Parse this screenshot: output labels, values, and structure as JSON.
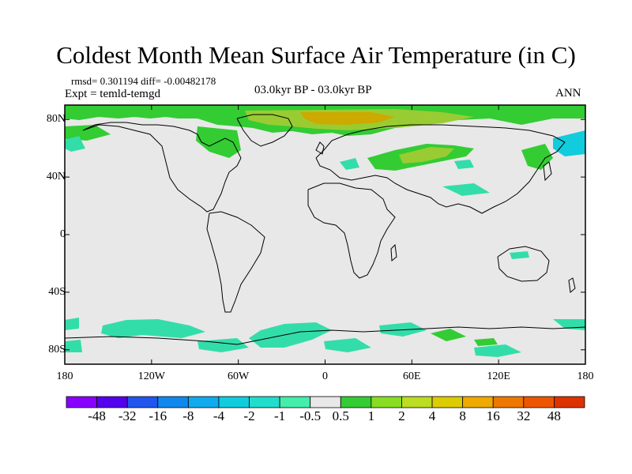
{
  "title": "Coldest Month Mean Surface Air Temperature (in C)",
  "stats_line": "rmsd= 0.301194 diff= -0.00482178",
  "expt_line": "Expt = temld-temgd",
  "period_label": "03.0kyr BP - 03.0kyr BP",
  "season_label": "ANN",
  "background_color": "#e8e8e8",
  "map_chart": {
    "type": "heatmap",
    "projection": "cylindrical equidistant",
    "lon_range": [
      -180,
      180
    ],
    "lat_range": [
      -90,
      90
    ],
    "y_ticks": [
      {
        "lat": 80,
        "label": "80N"
      },
      {
        "lat": 40,
        "label": "40N"
      },
      {
        "lat": 0,
        "label": "0"
      },
      {
        "lat": -40,
        "label": "40S"
      },
      {
        "lat": -80,
        "label": "80S"
      }
    ],
    "x_ticks": [
      {
        "lon": -180,
        "label": "180"
      },
      {
        "lon": -120,
        "label": "120W"
      },
      {
        "lon": -60,
        "label": "60W"
      },
      {
        "lon": 0,
        "label": "0"
      },
      {
        "lon": 60,
        "label": "60E"
      },
      {
        "lon": 120,
        "label": "120E"
      },
      {
        "lon": 180,
        "label": "180"
      }
    ],
    "anomaly_regions": [
      {
        "region": "arctic-greenland-north",
        "level": "1 to 2",
        "color": "#33cc33"
      },
      {
        "region": "arctic-central",
        "level": "2 to 4",
        "color": "#99cc33"
      },
      {
        "region": "arctic-peak",
        "level": "4 to 8",
        "color": "#ccaa00"
      },
      {
        "region": "siberia-warm-band",
        "level": "1 to 2",
        "color": "#33cc33"
      },
      {
        "region": "siberia-core",
        "level": "2 to 4",
        "color": "#99cc33"
      },
      {
        "region": "hudson-bay",
        "level": "0.5 to 1",
        "color": "#33cc33"
      },
      {
        "region": "north-atlantic-cool",
        "level": "-1 to -0.5",
        "color": "#33ddaa"
      },
      {
        "region": "kamchatka-cool",
        "level": "-2 to -1",
        "color": "#11ccdd"
      },
      {
        "region": "southern-ocean-cool",
        "level": "-1 to -0.5",
        "color": "#33ddaa"
      },
      {
        "region": "antarctic-warm",
        "level": "0.5 to 2",
        "color": "#66cc33"
      }
    ]
  },
  "colorbar": {
    "colors": [
      "#8800ff",
      "#5500ee",
      "#2255ee",
      "#1188ee",
      "#11aaee",
      "#11ccdd",
      "#22ddcc",
      "#44eeaa",
      "#e8e8e8",
      "#33cc33",
      "#88dd22",
      "#bbdd22",
      "#ddcc00",
      "#eeaa00",
      "#ee7700",
      "#ee5500",
      "#dd3300"
    ],
    "labels": [
      "-48",
      "-32",
      "-16",
      "-8",
      "-4",
      "-2",
      "-1",
      "-0.5",
      "0.5",
      "1",
      "2",
      "4",
      "8",
      "16",
      "32",
      "48"
    ]
  }
}
